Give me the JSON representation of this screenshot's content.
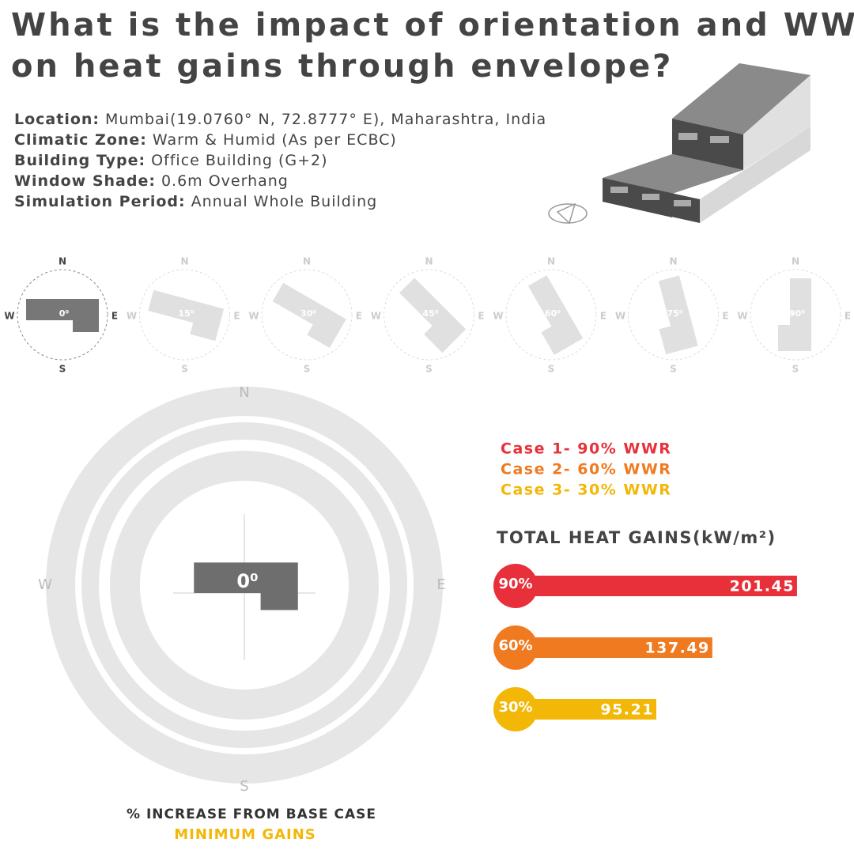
{
  "header": {
    "title_lines": [
      "What is the impact of orientation and WWR",
      "on heat gains through envelope?"
    ]
  },
  "info": [
    {
      "label": "Location:",
      "value": "Mumbai(19.0760° N, 72.8777° E), Maharashtra, India"
    },
    {
      "label": "Climatic Zone:",
      "value": "Warm & Humid (As per ECBC)"
    },
    {
      "label": "Building Type:",
      "value": "Office Building (G+2)"
    },
    {
      "label": "Window Shade:",
      "value": "0.6m Overhang"
    },
    {
      "label": "Simulation Period:",
      "value": "Annual Whole Building"
    }
  ],
  "orientations": {
    "directions": {
      "n": "N",
      "s": "S",
      "e": "E",
      "w": "W"
    },
    "items": [
      {
        "label": "0⁰",
        "angle": 0
      },
      {
        "label": "15⁰",
        "angle": 15
      },
      {
        "label": "30⁰",
        "angle": 30
      },
      {
        "label": "45⁰",
        "angle": 45
      },
      {
        "label": "60⁰",
        "angle": 60
      },
      {
        "label": "75⁰",
        "angle": 75
      },
      {
        "label": "90⁰",
        "angle": 90
      }
    ]
  },
  "chart_data": {
    "type": "bar",
    "orientation": "horizontal",
    "title": "TOTAL HEAT GAINS(kW/m²)",
    "legend": [
      "Case 1- 90% WWR",
      "Case 2- 60% WWR",
      "Case 3- 30% WWR"
    ],
    "categories": [
      "90%",
      "60%",
      "30%"
    ],
    "values": [
      201.45,
      137.49,
      95.21
    ],
    "colors": [
      "#e8303a",
      "#f07a1f",
      "#f2b707"
    ]
  },
  "footer": {
    "note": "% INCREASE FROM BASE CASE",
    "highlight": "MINIMUM GAINS"
  }
}
